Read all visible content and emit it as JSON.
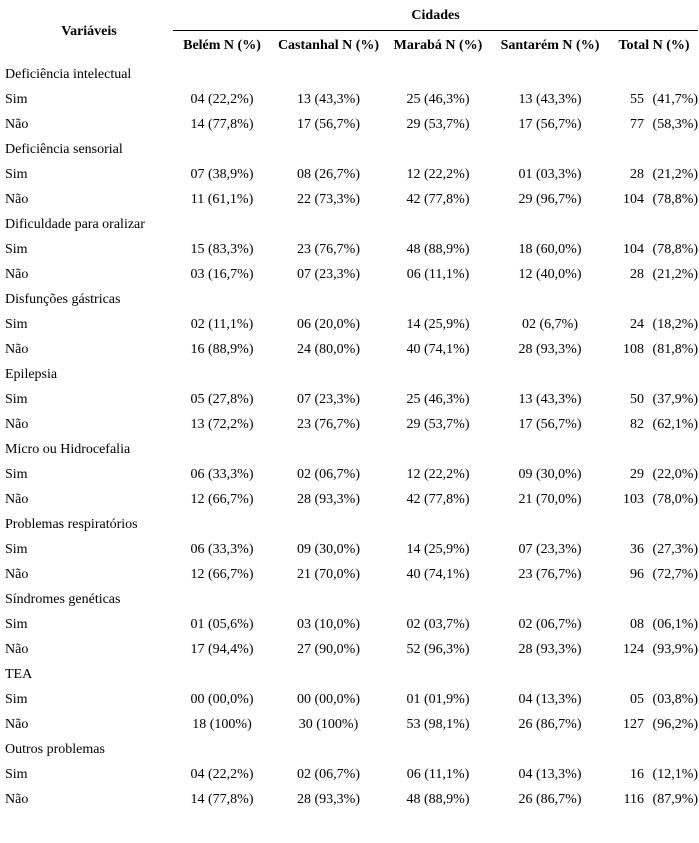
{
  "page": {
    "background_color": "#ffffff",
    "text_color": "#000000"
  },
  "table": {
    "variables_header": "Variáveis",
    "cities_header": "Cidades",
    "columns": [
      "Belém N (%)",
      "Castanhal N (%)",
      "Marabá N (%)",
      "Santarém N (%)",
      "Total N (%)"
    ],
    "rows": [
      {
        "type": "group",
        "label": "Deficiência intelectual"
      },
      {
        "type": "data",
        "label": "Sim",
        "cells": [
          "04 (22,2%)",
          "13 (43,3%)",
          "25 (46,3%)",
          "13 (43,3%)"
        ],
        "total_n": "55",
        "total_pct": "(41,7%)"
      },
      {
        "type": "data",
        "label": "Não",
        "cells": [
          "14 (77,8%)",
          "17 (56,7%)",
          "29 (53,7%)",
          "17 (56,7%)"
        ],
        "total_n": "77",
        "total_pct": "(58,3%)"
      },
      {
        "type": "group",
        "label": "Deficiência sensorial"
      },
      {
        "type": "data",
        "label": "Sim",
        "cells": [
          "07 (38,9%)",
          "08 (26,7%)",
          "12 (22,2%)",
          "01 (03,3%)"
        ],
        "total_n": "28",
        "total_pct": "(21,2%)"
      },
      {
        "type": "data",
        "label": "Não",
        "cells": [
          "11 (61,1%)",
          "22 (73,3%)",
          "42 (77,8%)",
          "29 (96,7%)"
        ],
        "total_n": "104",
        "total_pct": "(78,8%)"
      },
      {
        "type": "group",
        "label": "Dificuldade para oralizar"
      },
      {
        "type": "data",
        "label": "Sim",
        "cells": [
          "15 (83,3%)",
          "23 (76,7%)",
          "48 (88,9%)",
          "18 (60,0%)"
        ],
        "total_n": "104",
        "total_pct": "(78,8%)"
      },
      {
        "type": "data",
        "label": "Não",
        "cells": [
          "03 (16,7%)",
          "07 (23,3%)",
          "06 (11,1%)",
          "12 (40,0%)"
        ],
        "total_n": "28",
        "total_pct": "(21,2%)"
      },
      {
        "type": "group",
        "label": "Disfunções gástricas"
      },
      {
        "type": "data",
        "label": "Sim",
        "cells": [
          "02 (11,1%)",
          "06 (20,0%)",
          "14 (25,9%)",
          "02 (6,7%)"
        ],
        "total_n": "24",
        "total_pct": "(18,2%)"
      },
      {
        "type": "data",
        "label": "Não",
        "cells": [
          "16 (88,9%)",
          "24 (80,0%)",
          "40 (74,1%)",
          "28 (93,3%)"
        ],
        "total_n": "108",
        "total_pct": "(81,8%)"
      },
      {
        "type": "group",
        "label": "Epilepsia"
      },
      {
        "type": "data",
        "label": "Sim",
        "cells": [
          "05 (27,8%)",
          "07 (23,3%)",
          "25 (46,3%)",
          "13 (43,3%)"
        ],
        "total_n": "50",
        "total_pct": "(37,9%)"
      },
      {
        "type": "data",
        "label": "Não",
        "cells": [
          "13 (72,2%)",
          "23 (76,7%)",
          "29 (53,7%)",
          "17 (56,7%)"
        ],
        "total_n": "82",
        "total_pct": "(62,1%)"
      },
      {
        "type": "group",
        "label": "Micro ou Hidrocefalia"
      },
      {
        "type": "data",
        "label": "Sim",
        "cells": [
          "06 (33,3%)",
          "02 (06,7%)",
          "12 (22,2%)",
          "09 (30,0%)"
        ],
        "total_n": "29",
        "total_pct": "(22,0%)"
      },
      {
        "type": "data",
        "label": "Não",
        "cells": [
          "12 (66,7%)",
          "28 (93,3%)",
          "42 (77,8%)",
          "21 (70,0%)"
        ],
        "total_n": "103",
        "total_pct": "(78,0%)"
      },
      {
        "type": "group",
        "label": "Problemas respiratórios"
      },
      {
        "type": "data",
        "label": "Sim",
        "cells": [
          "06 (33,3%)",
          "09 (30,0%)",
          "14 (25,9%)",
          "07 (23,3%)"
        ],
        "total_n": "36",
        "total_pct": "(27,3%)"
      },
      {
        "type": "data",
        "label": "Não",
        "cells": [
          "12 (66,7%)",
          "21 (70,0%)",
          "40 (74,1%)",
          "23 (76,7%)"
        ],
        "total_n": "96",
        "total_pct": "(72,7%)"
      },
      {
        "type": "group",
        "label": "Síndromes genéticas"
      },
      {
        "type": "data",
        "label": "Sim",
        "cells": [
          "01 (05,6%)",
          "03 (10,0%)",
          "02 (03,7%)",
          "02 (06,7%)"
        ],
        "total_n": "08",
        "total_pct": "(06,1%)"
      },
      {
        "type": "data",
        "label": "Não",
        "cells": [
          "17 (94,4%)",
          "27 (90,0%)",
          "52 (96,3%)",
          "28 (93,3%)"
        ],
        "total_n": "124",
        "total_pct": "(93,9%)"
      },
      {
        "type": "group",
        "label": "TEA"
      },
      {
        "type": "data",
        "label": "Sim",
        "cells": [
          "00 (00,0%)",
          "00 (00,0%)",
          "01 (01,9%)",
          "04 (13,3%)"
        ],
        "total_n": "05",
        "total_pct": "(03,8%)"
      },
      {
        "type": "data",
        "label": "Não",
        "cells": [
          "18 (100%)",
          "30 (100%)",
          "53 (98,1%)",
          "26 (86,7%)"
        ],
        "total_n": "127",
        "total_pct": "(96,2%)"
      },
      {
        "type": "group",
        "label": "Outros problemas"
      },
      {
        "type": "data",
        "label": "Sim",
        "cells": [
          "04 (22,2%)",
          "02 (06,7%)",
          "06 (11,1%)",
          "04 (13,3%)"
        ],
        "total_n": "16",
        "total_pct": "(12,1%)"
      },
      {
        "type": "data",
        "label": "Não",
        "cells": [
          "14 (77,8%)",
          "28 (93,3%)",
          "48 (88,9%)",
          "26 (86,7%)"
        ],
        "total_n": "116",
        "total_pct": "(87,9%)"
      }
    ]
  }
}
